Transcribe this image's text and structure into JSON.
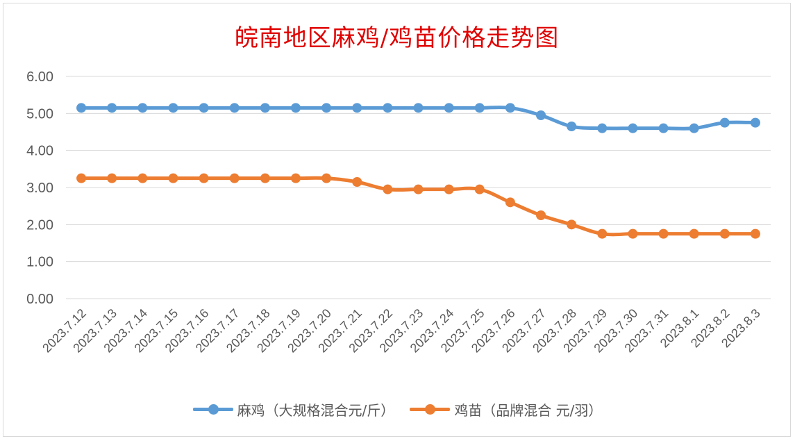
{
  "chart_data": {
    "type": "line",
    "title": "皖南地区麻鸡/鸡苗价格走势图",
    "categories": [
      "2023.7.12",
      "2023.7.13",
      "2023.7.14",
      "2023.7.15",
      "2023.7.16",
      "2023.7.17",
      "2023.7.18",
      "2023.7.19",
      "2023.7.20",
      "2023.7.21",
      "2023.7.22",
      "2023.7.23",
      "2023.7.24",
      "2023.7.25",
      "2023.7.26",
      "2023.7.27",
      "2023.7.28",
      "2023.7.29",
      "2023.7.30",
      "2023.7.31",
      "2023.8.1",
      "2023.8.2",
      "2023.8.3"
    ],
    "series": [
      {
        "name": "麻鸡（大规格混合元/斤）",
        "color": "#5b9bd5",
        "values": [
          5.15,
          5.15,
          5.15,
          5.15,
          5.15,
          5.15,
          5.15,
          5.15,
          5.15,
          5.15,
          5.15,
          5.15,
          5.15,
          5.15,
          5.15,
          4.95,
          4.65,
          4.6,
          4.6,
          4.6,
          4.6,
          4.75,
          4.75
        ]
      },
      {
        "name": "鸡苗（品牌混合 元/羽）",
        "color": "#ed7d31",
        "values": [
          3.25,
          3.25,
          3.25,
          3.25,
          3.25,
          3.25,
          3.25,
          3.25,
          3.25,
          3.15,
          2.95,
          2.95,
          2.95,
          2.95,
          2.6,
          2.25,
          2.0,
          1.75,
          1.75,
          1.75,
          1.75,
          1.75,
          1.75
        ]
      }
    ],
    "yticks": [
      "0.00",
      "1.00",
      "2.00",
      "3.00",
      "4.00",
      "5.00",
      "6.00"
    ],
    "ylim": [
      0,
      6
    ],
    "grid": true,
    "legend_position": "bottom",
    "xlabel": "",
    "ylabel": ""
  }
}
